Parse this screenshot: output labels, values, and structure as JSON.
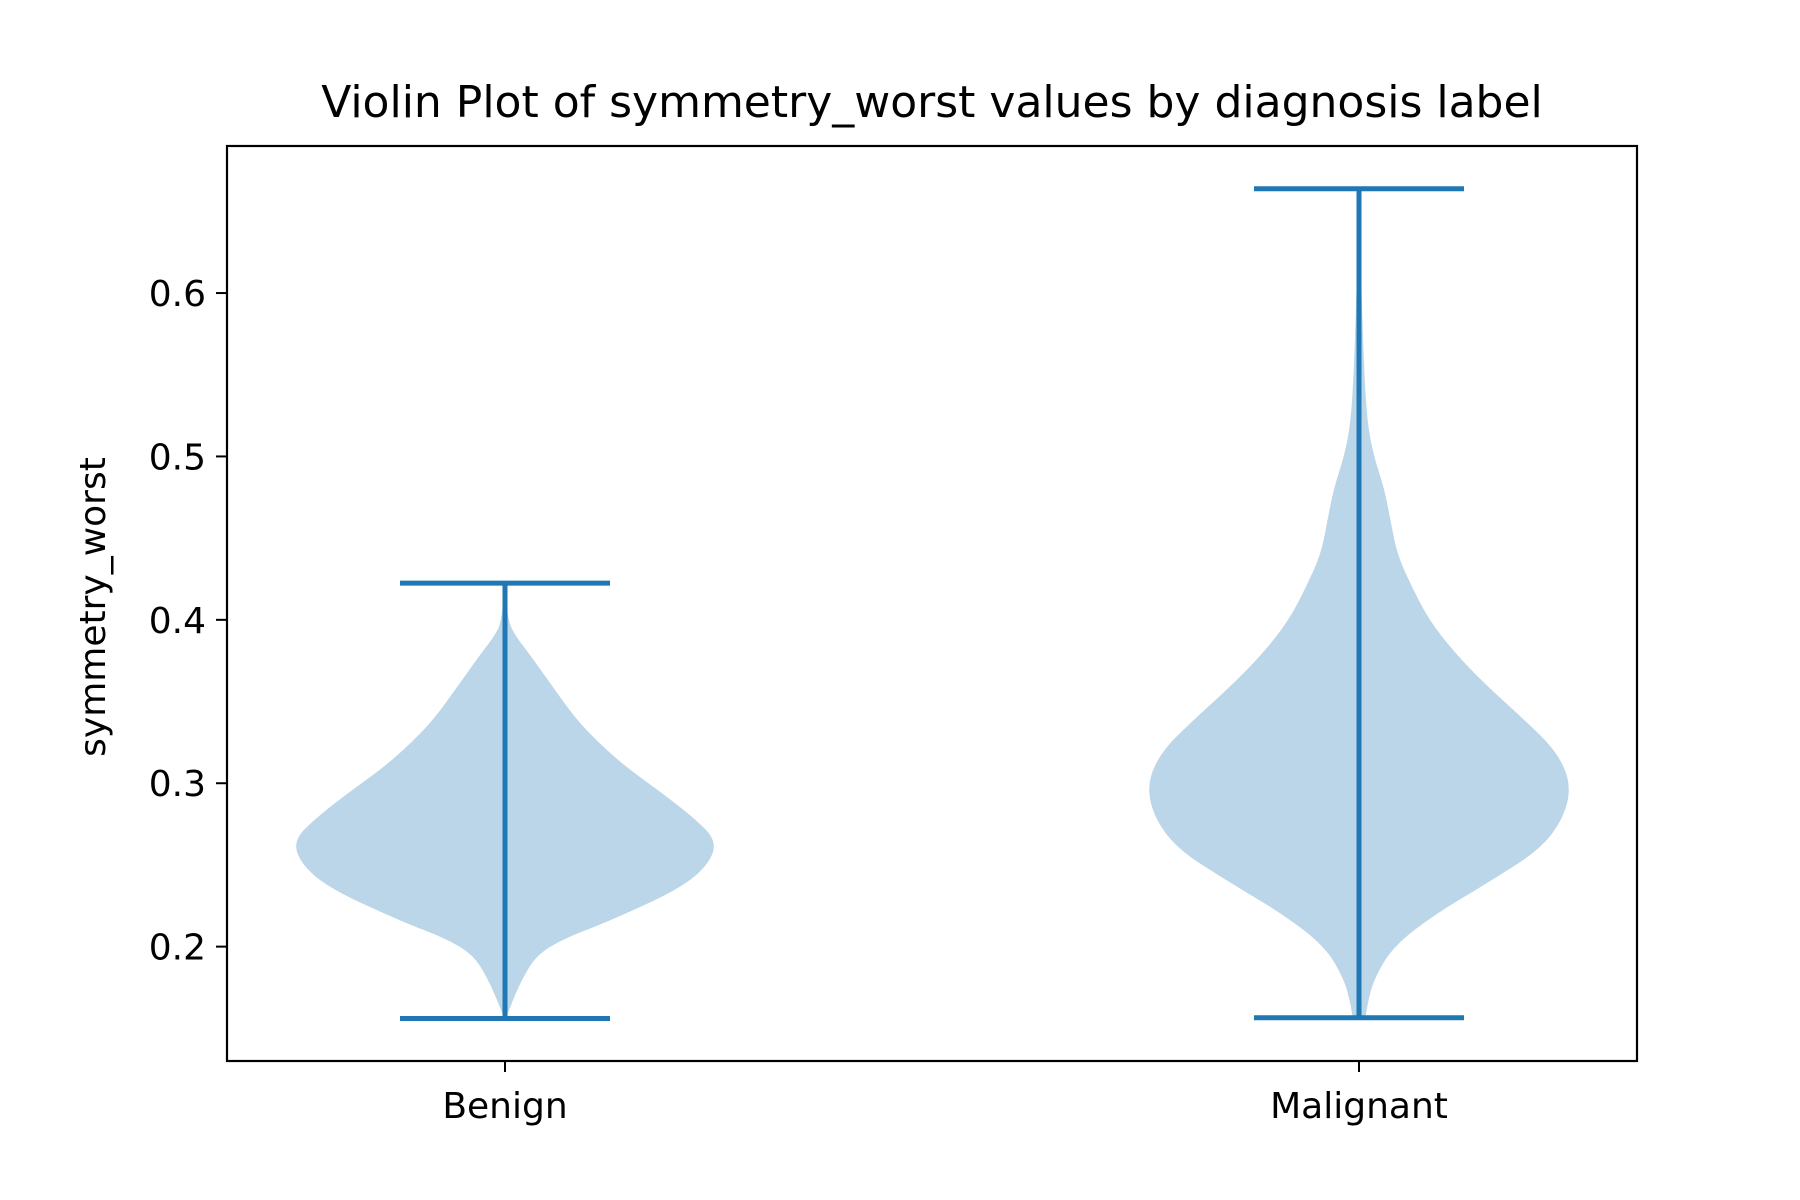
{
  "chart_data": {
    "type": "violin",
    "title": "Violin Plot of symmetry_worst values by diagnosis label",
    "xlabel": "",
    "ylabel": "symmetry_worst",
    "categories": [
      "Benign",
      "Malignant"
    ],
    "ylim": [
      0.13,
      0.69
    ],
    "yticks": [
      0.2,
      0.3,
      0.4,
      0.5,
      0.6
    ],
    "ytick_labels": [
      "0.2",
      "0.3",
      "0.4",
      "0.5",
      "0.6"
    ],
    "grid": false,
    "legend": "none",
    "colors": {
      "body": "#bbd6e8",
      "line": "#1f77b4"
    },
    "series": [
      {
        "category": "Benign",
        "min": 0.156,
        "max": 0.4225,
        "density_profile": [
          [
            0.156,
            0.004
          ],
          [
            0.165,
            0.03
          ],
          [
            0.18,
            0.08
          ],
          [
            0.195,
            0.15
          ],
          [
            0.205,
            0.28
          ],
          [
            0.215,
            0.48
          ],
          [
            0.235,
            0.82
          ],
          [
            0.25,
            0.96
          ],
          [
            0.265,
            1.0
          ],
          [
            0.28,
            0.88
          ],
          [
            0.295,
            0.73
          ],
          [
            0.31,
            0.57
          ],
          [
            0.325,
            0.44
          ],
          [
            0.34,
            0.33
          ],
          [
            0.36,
            0.22
          ],
          [
            0.38,
            0.11
          ],
          [
            0.39,
            0.05
          ],
          [
            0.4,
            0.012
          ],
          [
            0.4225,
            0.003
          ]
        ]
      },
      {
        "category": "Malignant",
        "min": 0.1565,
        "max": 0.6638,
        "density_profile": [
          [
            0.1565,
            0.03
          ],
          [
            0.165,
            0.04
          ],
          [
            0.18,
            0.07
          ],
          [
            0.2,
            0.16
          ],
          [
            0.22,
            0.36
          ],
          [
            0.24,
            0.62
          ],
          [
            0.26,
            0.86
          ],
          [
            0.28,
            0.97
          ],
          [
            0.3,
            1.0
          ],
          [
            0.32,
            0.93
          ],
          [
            0.34,
            0.77
          ],
          [
            0.36,
            0.6
          ],
          [
            0.38,
            0.45
          ],
          [
            0.4,
            0.33
          ],
          [
            0.42,
            0.25
          ],
          [
            0.44,
            0.18
          ],
          [
            0.46,
            0.15
          ],
          [
            0.48,
            0.12
          ],
          [
            0.5,
            0.07
          ],
          [
            0.52,
            0.04
          ],
          [
            0.55,
            0.025
          ],
          [
            0.6,
            0.012
          ],
          [
            0.63,
            0.006
          ],
          [
            0.6638,
            0.002
          ]
        ]
      }
    ]
  }
}
